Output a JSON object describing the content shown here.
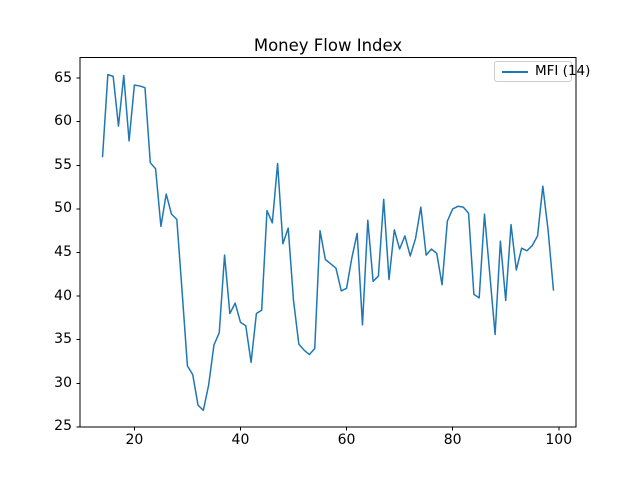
{
  "figure": {
    "background_color": "#ffffff"
  },
  "chart_data": {
    "type": "line",
    "title": "Money Flow Index",
    "xlabel": "",
    "ylabel": "",
    "grid": false,
    "xlim": [
      9.75,
      103.25
    ],
    "ylim": [
      24.97,
      67.35
    ],
    "x_ticks": [
      20,
      40,
      60,
      80,
      100
    ],
    "y_ticks": [
      25,
      30,
      35,
      40,
      45,
      50,
      55,
      60,
      65
    ],
    "legend": {
      "position": "upper right",
      "entries": [
        {
          "label": "MFI (14)",
          "color": "#1f77b4"
        }
      ]
    },
    "series": [
      {
        "name": "MFI (14)",
        "color": "#1f77b4",
        "line_width": 1.5,
        "x_start": 14,
        "x_step": 1,
        "values": [
          56.0,
          65.4,
          65.2,
          59.5,
          65.3,
          57.8,
          64.2,
          64.1,
          63.9,
          55.3,
          54.6,
          48.0,
          51.7,
          49.4,
          48.8,
          40.5,
          32.0,
          31.0,
          27.5,
          26.9,
          29.8,
          34.4,
          35.8,
          44.7,
          38.0,
          39.2,
          37.0,
          36.6,
          32.4,
          38.0,
          38.4,
          49.8,
          48.4,
          55.2,
          46.0,
          47.8,
          39.5,
          34.5,
          33.8,
          33.3,
          34.0,
          47.5,
          44.2,
          43.7,
          43.2,
          40.6,
          40.9,
          44.4,
          47.2,
          36.7,
          48.7,
          41.7,
          42.3,
          51.1,
          41.9,
          47.6,
          45.4,
          46.9,
          44.6,
          46.6,
          50.2,
          44.7,
          45.4,
          44.9,
          41.3,
          48.6,
          50.0,
          50.3,
          50.2,
          49.5,
          40.2,
          39.8,
          49.4,
          42.5,
          35.6,
          46.3,
          39.5,
          48.2,
          43.0,
          45.5,
          45.2,
          45.8,
          46.9,
          52.6,
          47.5,
          40.7
        ]
      }
    ]
  }
}
